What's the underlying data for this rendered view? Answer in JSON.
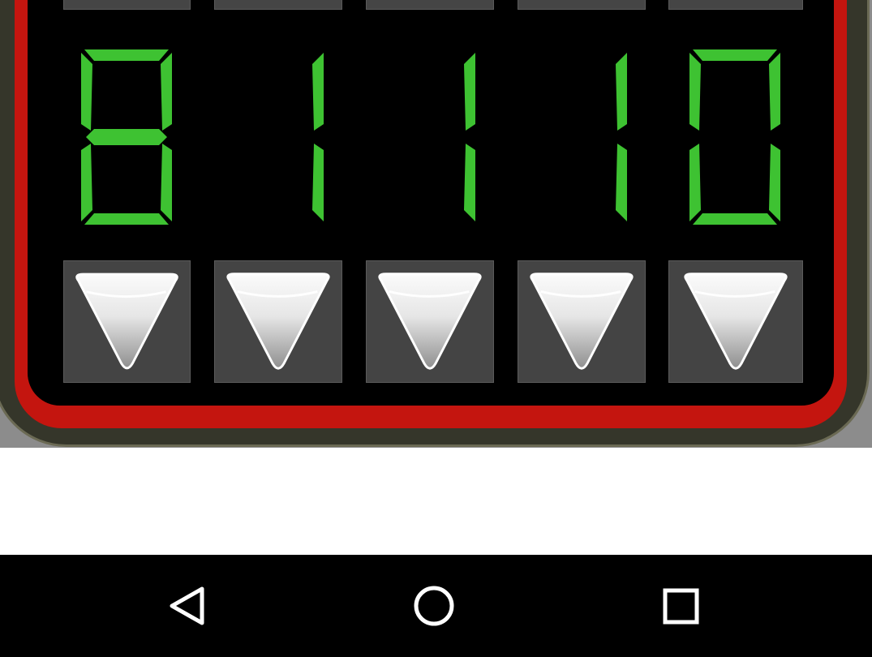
{
  "display": {
    "digits": [
      "8",
      "1",
      "1",
      "1",
      "0"
    ],
    "segment_color": "#3ec232",
    "frame_color": "#c4150f"
  },
  "controls": {
    "down_buttons": [
      {
        "icon": "triangle-down-icon"
      },
      {
        "icon": "triangle-down-icon"
      },
      {
        "icon": "triangle-down-icon"
      },
      {
        "icon": "triangle-down-icon"
      },
      {
        "icon": "triangle-down-icon"
      }
    ]
  },
  "navigation": {
    "buttons": [
      {
        "name": "back",
        "icon": "back-triangle-icon"
      },
      {
        "name": "home",
        "icon": "home-circle-icon"
      },
      {
        "name": "recents",
        "icon": "recents-square-icon"
      }
    ]
  }
}
